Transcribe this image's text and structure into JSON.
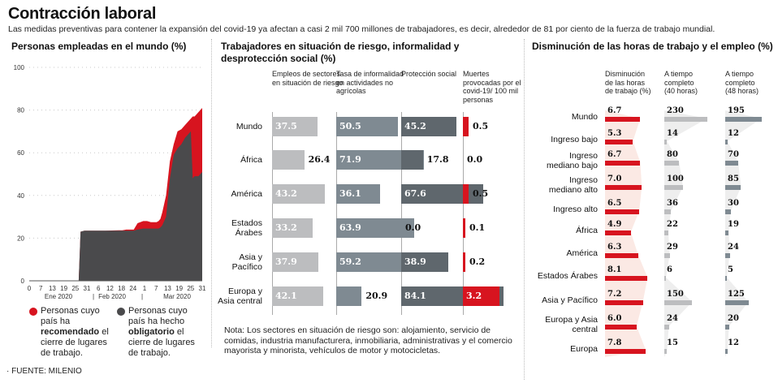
{
  "header": {
    "title": "Contracción laboral",
    "subtitle": "Las medidas preventivas para contener la expansión del covid-19 ya afectan a casi 2 mil 700 millones de trabajadores, es decir, alrededor de 81 por ciento de la fuerza de trabajo mundial."
  },
  "source": "· FUENTE: MILENIO",
  "colors": {
    "red": "#d7141f",
    "dark": "#4a4a4c",
    "light_gray": "#bcbdbf",
    "mid_gray": "#7f8a92",
    "slate": "#5f676d",
    "pink_bg": "#fbe9e4",
    "gray_bg": "#eeeeee"
  },
  "chart_data": [
    {
      "type": "area",
      "title": "Personas empleadas en el mundo (%)",
      "ylim": [
        0,
        100
      ],
      "yticks": [
        "0",
        "20",
        "40",
        "60",
        "80",
        "100"
      ],
      "xticks": [
        "0",
        "7",
        "13",
        "19",
        "25",
        "31",
        "6",
        "12",
        "18",
        "24",
        "1",
        "7",
        "13",
        "19",
        "25",
        "31"
      ],
      "month_labels": [
        "Ene 2020",
        "|",
        "Feb 2020",
        "|",
        "Mar 2020"
      ],
      "grid": true,
      "x_day_index": [
        0,
        26,
        27,
        29,
        35,
        40,
        47,
        49,
        51,
        53,
        55,
        57,
        60,
        62,
        64,
        66,
        67,
        68,
        69,
        70,
        72,
        74,
        76,
        78,
        80,
        82,
        84,
        85,
        86,
        87,
        88,
        89,
        90,
        91
      ],
      "series": [
        {
          "name": "Personas cuyo país ha recomendado el cierre de lugares de trabajo.",
          "color": "red",
          "values": [
            0,
            0,
            23,
            23.5,
            23.5,
            23.5,
            23.7,
            23.7,
            24,
            24,
            24,
            27,
            28,
            28,
            27.5,
            27.5,
            27.5,
            28,
            29,
            32,
            40,
            56,
            64,
            70,
            71,
            73,
            75,
            76,
            77,
            77,
            78,
            79,
            80,
            81
          ]
        },
        {
          "name": "Personas cuyo país ha hecho obligatorio el cierre de lugares de trabajo.",
          "color": "dark",
          "values": [
            0,
            0,
            23,
            23.5,
            23.5,
            23.5,
            23.5,
            23.5,
            23.5,
            23.5,
            23.5,
            24,
            24.5,
            24.5,
            24.5,
            24.5,
            24.5,
            24.5,
            25,
            26,
            30,
            48,
            59,
            62,
            64,
            67,
            69,
            70,
            48,
            49,
            49,
            49,
            50,
            51
          ]
        }
      ],
      "legend": [
        {
          "pre": "Personas cuyo país ha ",
          "bold": "recomendado",
          "post": " el cierre de lugares de trabajo.",
          "color": "red"
        },
        {
          "pre": "Personas cuyo país ha hecho ",
          "bold": "obligatorio",
          "post": " el cierre de lugares de trabajo.",
          "color": "dark"
        }
      ],
      "legend_position": "bottom"
    },
    {
      "type": "bar",
      "title": "Trabajadores en situación de riesgo, informalidad y desprotección social (%)",
      "columns": [
        {
          "label": "Empleos de sectores en situación de riesgo",
          "color": "light_gray",
          "max": 100
        },
        {
          "label": "Tasa de informalidad en actividades no agrícolas",
          "color": "mid_gray",
          "max": 100
        },
        {
          "label": "Protección social",
          "color": "slate",
          "max": 100
        },
        {
          "label": "Muertes provocadas por el covid-19/ 100 mil personas",
          "color": "red",
          "max": 5
        }
      ],
      "categories": [
        "Mundo",
        "África",
        "América",
        "Estados Árabes",
        "Asia y Pacífico",
        "Europa y Asia central"
      ],
      "category_lines": [
        [
          "Mundo"
        ],
        [
          "África"
        ],
        [
          "América"
        ],
        [
          "Estados",
          "Árabes"
        ],
        [
          "Asia y",
          "Pacífico"
        ],
        [
          "Europa y",
          "Asia central"
        ]
      ],
      "series": [
        {
          "name": "Empleos de sectores en situación de riesgo",
          "values": [
            37.5,
            26.4,
            43.2,
            33.2,
            37.9,
            42.1
          ]
        },
        {
          "name": "Tasa de informalidad en actividades no agrícolas",
          "values": [
            50.5,
            71.9,
            36.1,
            63.9,
            59.2,
            20.9
          ]
        },
        {
          "name": "Protección social",
          "values": [
            45.2,
            17.8,
            67.6,
            0.0,
            38.9,
            84.1
          ]
        },
        {
          "name": "Muertes provocadas por el covid-19/100 mil personas",
          "values": [
            0.5,
            0.0,
            0.5,
            0.1,
            0.2,
            3.2
          ]
        }
      ],
      "labels": [
        [
          "37.5",
          "26.4",
          "43.2",
          "33.2",
          "37.9",
          "42.1"
        ],
        [
          "50.5",
          "71.9",
          "36.1",
          "63.9",
          "59.2",
          "20.9"
        ],
        [
          "45.2",
          "17.8",
          "67.6",
          "0.0",
          "38.9",
          "84.1"
        ],
        [
          "0.5",
          "0.0",
          "0.5",
          "0.1",
          "0.2",
          "3.2"
        ]
      ],
      "note": "Nota: Los sectores en situación de riesgo son: alojamiento, servicio de comidas, industria manufacturera, inmobiliaria, administrativas y el comercio mayorista y minorista, vehículos de motor y motocicletas."
    },
    {
      "type": "bar",
      "title": "Disminución de las horas de trabajo y el empleo (%)",
      "columns": [
        {
          "label_lines": [
            "Disminución",
            "de las horas",
            "de trabajo (%)"
          ],
          "color": "red",
          "max": 8.5
        },
        {
          "label_lines": [
            "A tiempo",
            "completo",
            "(40 horas)"
          ],
          "color": "light_gray",
          "max": 240
        },
        {
          "label_lines": [
            "A tiempo",
            "completo",
            "(48 horas)"
          ],
          "color": "mid_gray",
          "max": 240
        }
      ],
      "categories": [
        "Mundo",
        "Ingreso bajo",
        "Ingreso mediano bajo",
        "Ingreso mediano alto",
        "Ingreso alto",
        "África",
        "América",
        "Estados Árabes",
        "Asia y Pacífico",
        "Europa y Asia central",
        "Europa"
      ],
      "category_lines": [
        [
          "Mundo"
        ],
        [
          "Ingreso bajo"
        ],
        [
          "Ingreso",
          "mediano bajo"
        ],
        [
          "Ingreso",
          "mediano alto"
        ],
        [
          "Ingreso alto"
        ],
        [
          "África"
        ],
        [
          "América"
        ],
        [
          "Estados Árabes"
        ],
        [
          "Asia y Pacífico"
        ],
        [
          "Europa y Asia",
          "central"
        ],
        [
          "Europa"
        ]
      ],
      "series": [
        {
          "name": "Disminución de las horas de trabajo (%)",
          "values": [
            6.7,
            5.3,
            6.7,
            7.0,
            6.5,
            4.9,
            6.3,
            8.1,
            7.2,
            6.0,
            7.8
          ]
        },
        {
          "name": "A tiempo completo (40 horas)",
          "values": [
            230,
            14,
            80,
            100,
            36,
            22,
            29,
            6,
            150,
            24,
            15
          ]
        },
        {
          "name": "A tiempo completo (48 horas)",
          "values": [
            195,
            12,
            70,
            85,
            30,
            19,
            24,
            5,
            125,
            20,
            12
          ]
        }
      ],
      "labels": [
        [
          "6.7",
          "5.3",
          "6.7",
          "7.0",
          "6.5",
          "4.9",
          "6.3",
          "8.1",
          "7.2",
          "6.0",
          "7.8"
        ],
        [
          "230",
          "14",
          "80",
          "100",
          "36",
          "22",
          "29",
          "6",
          "150",
          "24",
          "15"
        ],
        [
          "195",
          "12",
          "70",
          "85",
          "30",
          "19",
          "24",
          "5",
          "125",
          "20",
          "12"
        ]
      ]
    }
  ]
}
